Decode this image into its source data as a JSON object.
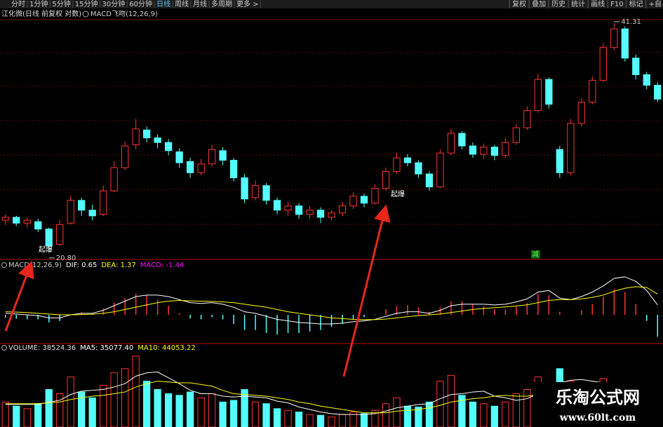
{
  "toolbar": {
    "left": [
      "分时",
      "1分钟",
      "5分钟",
      "15分钟",
      "30分钟",
      "60分钟",
      "日线",
      "周线",
      "月线",
      "多周期",
      "更多 >"
    ],
    "active": 6,
    "right": [
      "复权",
      "叠加",
      "历史",
      "统计",
      "画线",
      "F10",
      "标记",
      "+自"
    ]
  },
  "chart_data": [
    {
      "type": "candlestick",
      "title": "江化微(日线 前复权 对数)",
      "subtitle": "MACD飞吻(12,26,9)",
      "log_scale": true,
      "ylim": [
        20.45,
        41.74
      ],
      "up_color": "#ff3232",
      "down_color": "#54fcfc",
      "open": [
        22.9,
        23.1,
        22.7,
        22.8,
        22.3,
        21.3,
        22.7,
        24.3,
        23.6,
        23.3,
        25.0,
        26.8,
        28.7,
        30.0,
        29.3,
        28.9,
        28.1,
        27.3,
        26.4,
        27.1,
        28.2,
        27.4,
        26.0,
        24.5,
        25.4,
        24.3,
        23.6,
        23.9,
        23.3,
        23.6,
        23.1,
        23.4,
        23.9,
        24.6,
        24.1,
        25.2,
        26.5,
        27.6,
        27.2,
        26.3,
        25.3,
        28.0,
        29.7,
        28.6,
        27.9,
        28.5,
        27.8,
        28.9,
        30.2,
        31.8,
        34.9,
        28.3,
        26.4,
        30.6,
        32.6,
        34.8,
        38.4,
        40.6,
        37.2,
        35.4,
        34.3
      ],
      "high": [
        23.3,
        23.2,
        23.1,
        23.0,
        22.4,
        22.9,
        24.6,
        24.5,
        24.0,
        25.4,
        27.3,
        29.0,
        31.0,
        30.3,
        29.6,
        29.2,
        28.4,
        27.6,
        27.5,
        28.7,
        28.5,
        27.6,
        26.3,
        25.8,
        25.6,
        24.5,
        24.2,
        24.1,
        23.9,
        23.8,
        23.6,
        24.2,
        24.9,
        24.8,
        25.5,
        26.8,
        28.0,
        27.9,
        27.4,
        26.5,
        28.3,
        30.1,
        29.9,
        28.9,
        28.8,
        28.7,
        29.3,
        30.5,
        32.2,
        35.5,
        35.1,
        28.6,
        31.0,
        33.0,
        35.2,
        38.9,
        41.31,
        40.9,
        37.6,
        35.7,
        34.6
      ],
      "low": [
        22.6,
        22.5,
        22.4,
        22.1,
        20.8,
        21.2,
        22.6,
        23.2,
        22.9,
        23.2,
        24.9,
        26.6,
        28.3,
        28.9,
        28.4,
        27.8,
        26.8,
        26.0,
        26.2,
        26.9,
        27.0,
        25.7,
        24.1,
        24.3,
        24.0,
        23.3,
        23.2,
        23.0,
        23.0,
        22.7,
        22.9,
        23.2,
        23.7,
        23.8,
        24.0,
        25.0,
        26.3,
        26.9,
        26.0,
        25.0,
        25.2,
        27.8,
        28.3,
        27.6,
        27.5,
        27.4,
        27.6,
        28.7,
        30.0,
        31.6,
        32.0,
        26.0,
        26.2,
        30.3,
        32.4,
        34.6,
        38.1,
        36.8,
        34.9,
        33.9,
        32.6
      ],
      "close": [
        23.1,
        22.7,
        22.9,
        22.3,
        21.2,
        22.6,
        24.3,
        23.6,
        23.2,
        25.0,
        26.8,
        28.6,
        30.1,
        29.3,
        28.9,
        28.2,
        27.2,
        26.4,
        27.1,
        28.3,
        27.4,
        26.0,
        24.4,
        25.4,
        24.3,
        23.6,
        23.9,
        23.3,
        23.6,
        23.1,
        23.4,
        23.9,
        24.6,
        24.1,
        25.2,
        26.5,
        27.6,
        27.2,
        26.3,
        25.3,
        28.0,
        29.7,
        28.6,
        27.9,
        28.5,
        27.8,
        28.9,
        30.2,
        31.8,
        34.9,
        32.4,
        26.4,
        30.6,
        32.6,
        34.8,
        38.4,
        40.6,
        37.2,
        35.4,
        34.3,
        32.9
      ],
      "annotations": [
        {
          "value": 20.8,
          "label": "20.80"
        },
        {
          "value": 41.31,
          "label": "41.31"
        }
      ],
      "signals": [
        "起爆",
        "起爆"
      ],
      "marker": "减"
    },
    {
      "type": "macd",
      "ylim": [
        -1.8,
        3.0
      ],
      "legend": [
        "MACD(12,26,9)",
        "DIF: 0.65",
        "DEA: 1.37",
        "MACD: -1.44"
      ],
      "series": [
        {
          "name": "DIF",
          "color": "#ffffff",
          "values": [
            0.1,
            0.05,
            0.0,
            -0.05,
            -0.2,
            -0.2,
            0.0,
            0.1,
            0.1,
            0.3,
            0.6,
            0.9,
            1.2,
            1.3,
            1.3,
            1.2,
            1.0,
            0.8,
            0.75,
            0.8,
            0.7,
            0.5,
            0.2,
            0.1,
            -0.1,
            -0.3,
            -0.4,
            -0.5,
            -0.55,
            -0.6,
            -0.6,
            -0.55,
            -0.45,
            -0.4,
            -0.3,
            -0.1,
            0.1,
            0.2,
            0.2,
            0.1,
            0.3,
            0.6,
            0.7,
            0.7,
            0.7,
            0.65,
            0.7,
            0.85,
            1.05,
            1.5,
            1.6,
            1.1,
            1.0,
            1.2,
            1.5,
            1.9,
            2.4,
            2.5,
            2.2,
            1.6,
            0.65
          ]
        },
        {
          "name": "DEA",
          "color": "#ffff00",
          "values": [
            0.2,
            0.18,
            0.15,
            0.1,
            0.05,
            0.0,
            0.0,
            0.02,
            0.04,
            0.1,
            0.2,
            0.35,
            0.5,
            0.65,
            0.8,
            0.9,
            0.95,
            0.92,
            0.9,
            0.88,
            0.85,
            0.8,
            0.7,
            0.6,
            0.5,
            0.35,
            0.2,
            0.1,
            0.0,
            -0.1,
            -0.2,
            -0.25,
            -0.3,
            -0.32,
            -0.32,
            -0.28,
            -0.2,
            -0.12,
            -0.05,
            0.0,
            0.05,
            0.15,
            0.25,
            0.35,
            0.42,
            0.47,
            0.52,
            0.58,
            0.66,
            0.8,
            0.95,
            1.0,
            1.0,
            1.05,
            1.15,
            1.3,
            1.55,
            1.75,
            1.85,
            1.8,
            1.37
          ]
        },
        {
          "name": "MACD",
          "color": "#ff3232",
          "down_color": "#54fcfc",
          "values": [
            -0.2,
            -0.26,
            -0.3,
            -0.3,
            -0.5,
            -0.4,
            0,
            0.16,
            0.12,
            0.4,
            0.8,
            1.1,
            1.4,
            1.3,
            1.0,
            0.6,
            0.1,
            -0.24,
            -0.3,
            -0.16,
            -0.3,
            -0.6,
            -1.0,
            -1.0,
            -1.2,
            -1.3,
            -1.2,
            -1.2,
            -1.1,
            -1.0,
            -0.8,
            -0.6,
            -0.3,
            -0.16,
            0.04,
            0.36,
            0.6,
            0.64,
            0.5,
            0.2,
            0.5,
            0.9,
            0.9,
            0.7,
            0.56,
            0.36,
            0.36,
            0.54,
            0.78,
            1.4,
            1.3,
            0.2,
            0,
            0.3,
            0.7,
            1.2,
            1.7,
            1.5,
            0.7,
            -0.4,
            -1.44
          ]
        }
      ]
    },
    {
      "type": "volume",
      "ylim": [
        0,
        90000
      ],
      "legend": [
        "VOLUME: 38524.36",
        "MA5: 35077.40",
        "MA10: 44053.22"
      ],
      "values": [
        30000,
        25000,
        22000,
        28000,
        45000,
        40000,
        60000,
        42000,
        35000,
        50000,
        65000,
        70000,
        85000,
        55000,
        45000,
        40000,
        38000,
        42000,
        35000,
        40000,
        30000,
        32000,
        45000,
        30000,
        28000,
        22000,
        20000,
        18000,
        15000,
        14000,
        12000,
        15000,
        18000,
        16000,
        20000,
        28000,
        35000,
        25000,
        24000,
        30000,
        55000,
        62000,
        38000,
        30000,
        28000,
        25000,
        30000,
        40000,
        45000,
        60000,
        50000,
        70000,
        55000,
        48000,
        52000,
        58000,
        34000,
        33000,
        36000,
        33862.64,
        38524.36
      ],
      "series": [
        {
          "name": "MA5",
          "color": "#ffffff",
          "values": [
            27000,
            27000,
            27000,
            27000,
            30000,
            32000,
            39000,
            43000,
            44000,
            45000,
            48000,
            52000,
            61000,
            65000,
            66000,
            59000,
            52000,
            44000,
            40000,
            40000,
            37000,
            36000,
            37000,
            36000,
            35000,
            31000,
            29000,
            24000,
            21000,
            18000,
            16000,
            15000,
            15000,
            15000,
            16000,
            19000,
            23000,
            25000,
            27000,
            28000,
            34000,
            39000,
            40000,
            42000,
            43000,
            37000,
            35000,
            32000,
            34000,
            40000,
            45000,
            53000,
            56000,
            57000,
            55000,
            53000,
            47000,
            45000,
            41000,
            37000,
            35077.4
          ]
        },
        {
          "name": "MA10",
          "color": "#ffff00",
          "values": [
            28000,
            28000,
            28000,
            28000,
            29000,
            30000,
            33000,
            35000,
            37000,
            38000,
            40000,
            42000,
            48000,
            52000,
            55000,
            54000,
            53000,
            53000,
            51000,
            49000,
            44000,
            40000,
            39000,
            38000,
            37000,
            35000,
            33000,
            30000,
            28000,
            25000,
            23000,
            21000,
            19000,
            17000,
            17000,
            17000,
            19000,
            20000,
            21000,
            23000,
            26000,
            30000,
            32000,
            34000,
            35000,
            37000,
            38000,
            37000,
            37000,
            39000,
            41000,
            44000,
            46000,
            48000,
            49000,
            50000,
            50000,
            49000,
            48000,
            46000,
            44053.22
          ]
        }
      ]
    }
  ],
  "watermark": {
    "title": "乐淘公式网",
    "url": "www.60lt.com"
  }
}
